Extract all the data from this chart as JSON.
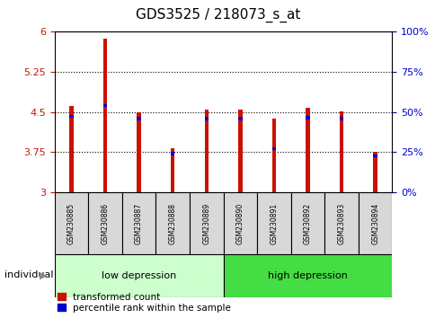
{
  "title": "GDS3525 / 218073_s_at",
  "samples": [
    "GSM230885",
    "GSM230886",
    "GSM230887",
    "GSM230888",
    "GSM230889",
    "GSM230890",
    "GSM230891",
    "GSM230892",
    "GSM230893",
    "GSM230894"
  ],
  "red_values": [
    4.62,
    5.87,
    4.5,
    3.82,
    4.55,
    4.55,
    4.38,
    4.58,
    4.52,
    3.76
  ],
  "blue_values": [
    4.42,
    4.62,
    4.38,
    3.72,
    4.38,
    4.38,
    3.82,
    4.4,
    4.38,
    3.68
  ],
  "ylim_left": [
    3.0,
    6.0
  ],
  "ylim_right": [
    0,
    100
  ],
  "yticks_left": [
    3.0,
    3.75,
    4.5,
    5.25,
    6.0
  ],
  "yticks_right": [
    0,
    25,
    50,
    75,
    100
  ],
  "ytick_labels_left": [
    "3",
    "3.75",
    "4.5",
    "5.25",
    "6"
  ],
  "ytick_labels_right": [
    "0%",
    "25%",
    "50%",
    "75%",
    "100%"
  ],
  "grid_lines": [
    3.75,
    4.5,
    5.25
  ],
  "groups": [
    {
      "label": "low depression",
      "start": 0,
      "end": 5,
      "color": "#ccffcc"
    },
    {
      "label": "high depression",
      "start": 5,
      "end": 10,
      "color": "#44dd44"
    }
  ],
  "bar_color": "#cc1100",
  "marker_color": "#0000cc",
  "bar_width": 0.12,
  "xlabel_bottom": "individual",
  "legend1": "transformed count",
  "legend2": "percentile rank within the sample",
  "tick_label_color_left": "#cc1100",
  "tick_label_color_right": "#0000cc",
  "base_value": 3.0,
  "sample_box_color": "#d8d8d8",
  "title_fontsize": 11,
  "tick_fontsize": 8,
  "legend_fontsize": 7.5,
  "sample_fontsize": 5.5,
  "group_fontsize": 8
}
